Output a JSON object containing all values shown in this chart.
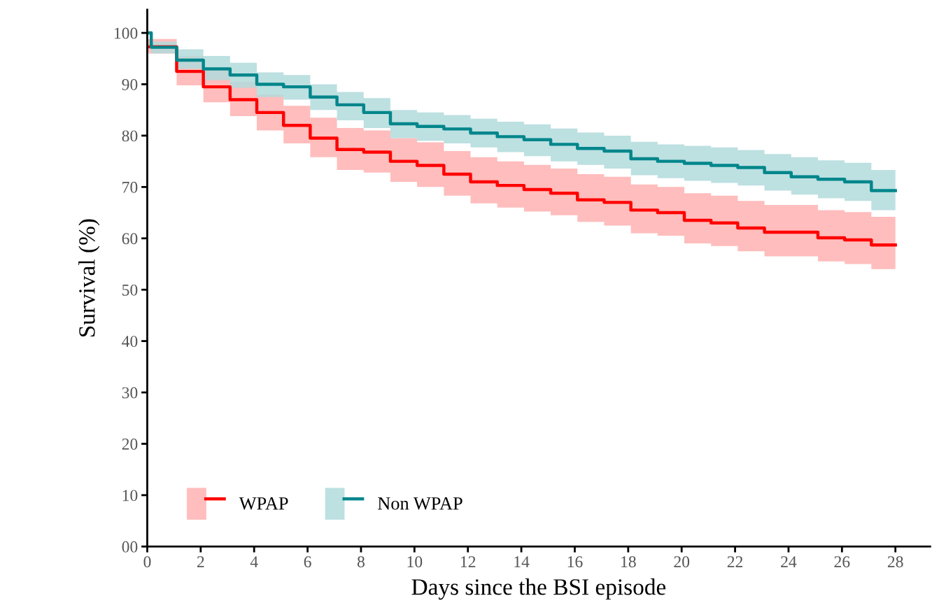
{
  "chart_data": {
    "type": "step",
    "xlabel": "Days since the BSI episode",
    "ylabel": "Survival (%)",
    "xlim": [
      0,
      29.3
    ],
    "xticks": [
      0,
      2,
      4,
      6,
      8,
      10,
      12,
      14,
      16,
      18,
      20,
      22,
      24,
      26,
      28
    ],
    "ylim": [
      0,
      104.5
    ],
    "yticks": [
      {
        "value": 0,
        "label": "00"
      },
      10,
      20,
      30,
      40,
      50,
      60,
      70,
      80,
      90,
      100
    ],
    "grid": false,
    "legend": "bottom left",
    "line_style": "solid",
    "marker": "none",
    "series": [
      {
        "name": "WPAP",
        "color": "#ff0000",
        "x": [
          0,
          1.1,
          2.1,
          3.1,
          4.1,
          5.1,
          6.1,
          7.1,
          8.1,
          9.1,
          10.1,
          11.1,
          12.1,
          13.1,
          14.1,
          15.1,
          16.1,
          17.1,
          18.1,
          19.1,
          20.1,
          21.1,
          22.1,
          23.1,
          24.1,
          25.1,
          26.1,
          27.1,
          28
        ],
        "values": [
          97.3,
          92.5,
          89.5,
          87,
          84.5,
          82,
          79.5,
          77.3,
          76.8,
          75,
          74.2,
          72.5,
          71,
          70.3,
          69.5,
          68.8,
          67.5,
          67,
          65.5,
          65,
          63.5,
          63,
          62,
          61.2,
          61.2,
          60.1,
          59.7,
          58.7,
          58.7
        ],
        "upper": [
          98.8,
          95.5,
          93,
          90.5,
          88,
          85.8,
          83.5,
          81.5,
          81,
          79.5,
          78.7,
          77,
          75.8,
          75,
          74.3,
          73.6,
          72.5,
          72,
          70.5,
          70,
          68.8,
          68.3,
          67.3,
          66.5,
          66.5,
          65.5,
          65.1,
          64.2,
          64.2
        ],
        "lower": [
          96,
          89.8,
          86.5,
          83.8,
          81,
          78.5,
          75.8,
          73.3,
          72.8,
          71,
          70,
          68.3,
          66.8,
          66,
          65.2,
          64.5,
          63.2,
          62.5,
          61,
          60.5,
          59,
          58.5,
          57.5,
          56.5,
          56.5,
          55.5,
          55,
          54,
          54
        ]
      },
      {
        "name": "Non WPAP",
        "color": "#00868b",
        "x": [
          0,
          0.15,
          1.1,
          2.1,
          3.1,
          4.1,
          5.1,
          6.1,
          7.1,
          8.1,
          9.1,
          10.1,
          11.1,
          12.1,
          13.1,
          14.1,
          15.1,
          16.1,
          17.1,
          18.1,
          19.1,
          20.1,
          21.1,
          22.1,
          23.1,
          24.1,
          25.1,
          26.1,
          27.1,
          28
        ],
        "values": [
          100,
          97.2,
          94.7,
          93,
          91.8,
          90,
          89.5,
          87.5,
          86,
          84.5,
          82.3,
          81.8,
          81.3,
          80.5,
          79.8,
          79.2,
          78.3,
          77.5,
          77,
          75.5,
          75,
          74.6,
          74.2,
          73.8,
          72.8,
          72,
          71.5,
          71,
          69.3,
          69.3
        ],
        "upper": [
          100,
          98.3,
          96.8,
          95.5,
          94.2,
          92.3,
          91.8,
          90,
          88.5,
          87.3,
          85,
          84.5,
          84,
          83.3,
          82.7,
          82.2,
          81.4,
          80.6,
          80,
          78.8,
          78.3,
          78,
          77.7,
          77.2,
          76.4,
          75.8,
          75.2,
          74.7,
          73.3,
          73.3
        ],
        "lower": [
          100,
          96,
          93,
          90.8,
          89.3,
          87.5,
          87,
          85,
          83,
          81.5,
          79.5,
          79,
          78.5,
          77.7,
          76.8,
          76,
          75,
          74.3,
          73.6,
          72.3,
          71.7,
          71.2,
          70.8,
          70.3,
          69.3,
          68.5,
          67.8,
          67.3,
          65.5,
          65.5
        ]
      }
    ]
  }
}
